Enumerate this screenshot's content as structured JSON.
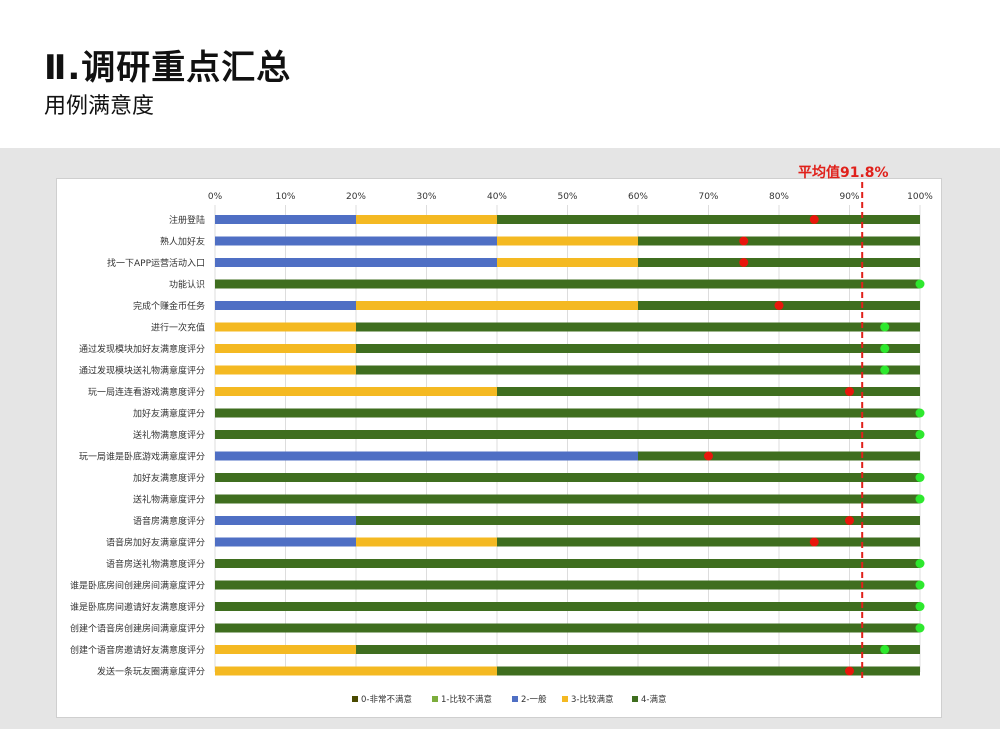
{
  "slide": {
    "title": "Ⅱ.调研重点汇总",
    "subtitle": "用例满意度"
  },
  "colors": {
    "very_unsatisfied": "#4a4a00",
    "unsatisfied": "#7cad3c",
    "neutral": "#4f6fc4",
    "satisfied": "#f4b922",
    "very_satisfied": "#3f6e1f",
    "marker_red": "#e8160c",
    "marker_green": "#2ee82e",
    "average_line": "#e0211b"
  },
  "chart_data": {
    "type": "bar",
    "orientation": "horizontal",
    "stacked": true,
    "xlim": [
      0,
      100
    ],
    "x_ticks": [
      "0%",
      "10%",
      "20%",
      "30%",
      "40%",
      "50%",
      "60%",
      "70%",
      "80%",
      "90%",
      "100%"
    ],
    "categories": [
      "注册登陆",
      "熟人加好友",
      "找一下APP运营活动入口",
      "功能认识",
      "完成个赚金币任务",
      "进行一次充值",
      "通过发现模块加好友满意度评分",
      "通过发现模块送礼物满意度评分",
      "玩一局连连看游戏满意度评分",
      "加好友满意度评分",
      "送礼物满意度评分",
      "玩一局谁是卧底游戏满意度评分",
      "加好友满意度评分",
      "送礼物满意度评分",
      "语音房满意度评分",
      "语音房加好友满意度评分",
      "语音房送礼物满意度评分",
      "谁是卧底房间创建房间满意度评分",
      "谁是卧底房间邀请好友满意度评分",
      "创建个语音房创建房间满意度评分",
      "创建个语音房邀请好友满意度评分",
      "发送一条玩友圈满意度评分"
    ],
    "series": [
      {
        "name": "0-非常不满意",
        "color": "#4a4a00",
        "values": [
          0,
          0,
          0,
          0,
          0,
          0,
          0,
          0,
          0,
          0,
          0,
          0,
          0,
          0,
          0,
          0,
          0,
          0,
          0,
          0,
          0,
          0
        ]
      },
      {
        "name": "1-比较不满意",
        "color": "#7cad3c",
        "values": [
          0,
          0,
          0,
          0,
          0,
          0,
          0,
          0,
          0,
          0,
          0,
          0,
          0,
          0,
          0,
          0,
          0,
          0,
          0,
          0,
          0,
          0
        ]
      },
      {
        "name": "2-一般",
        "color": "#4f6fc4",
        "values": [
          20,
          40,
          40,
          0,
          20,
          0,
          0,
          0,
          0,
          0,
          0,
          60,
          0,
          0,
          20,
          20,
          0,
          0,
          0,
          0,
          0,
          0
        ]
      },
      {
        "name": "3-比较满意",
        "color": "#f4b922",
        "values": [
          20,
          20,
          20,
          0,
          40,
          20,
          20,
          20,
          40,
          0,
          0,
          0,
          0,
          0,
          0,
          20,
          0,
          0,
          0,
          0,
          20,
          40
        ]
      },
      {
        "name": "4-满意",
        "color": "#3f6e1f",
        "values": [
          60,
          40,
          40,
          100,
          40,
          80,
          80,
          80,
          60,
          100,
          100,
          40,
          100,
          100,
          80,
          60,
          100,
          100,
          100,
          100,
          80,
          60
        ]
      }
    ],
    "markers": [
      85,
      75,
      75,
      100,
      80,
      95,
      95,
      95,
      90,
      100,
      100,
      70,
      100,
      100,
      90,
      85,
      100,
      100,
      100,
      100,
      95,
      90
    ],
    "marker_status": [
      "red",
      "red",
      "red",
      "green",
      "red",
      "green",
      "green",
      "green",
      "red",
      "green",
      "green",
      "red",
      "green",
      "green",
      "red",
      "red",
      "green",
      "green",
      "green",
      "green",
      "green",
      "red"
    ],
    "average": 91.8,
    "average_label": "平均值91.8%",
    "legend_position": "bottom"
  }
}
